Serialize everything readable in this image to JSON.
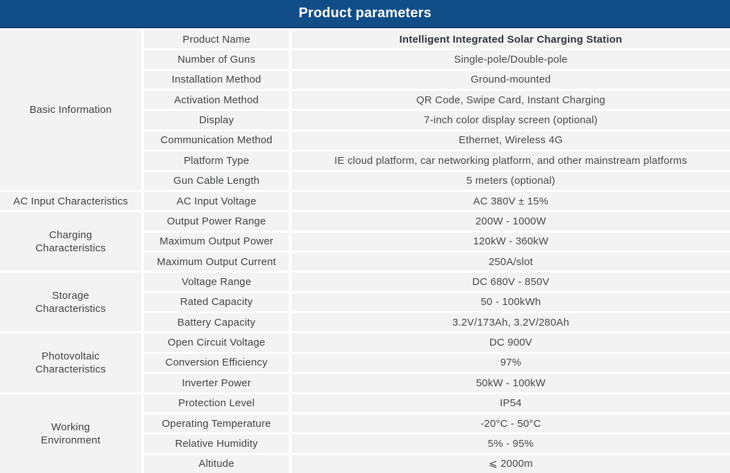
{
  "header": {
    "title": "Product parameters"
  },
  "colors": {
    "header_bg": "#114e88",
    "header_border": "#0d3d6e",
    "cell_bg": "#f4f3f3",
    "header_text": "#ffffff"
  },
  "table": {
    "groups": [
      {
        "category": "Basic Information",
        "rows": [
          {
            "param": "Product Name",
            "value": "Intelligent Integrated Solar Charging Station",
            "bold": true
          },
          {
            "param": "Number of Guns",
            "value": "Single-pole/Double-pole"
          },
          {
            "param": "Installation Method",
            "value": "Ground-mounted"
          },
          {
            "param": "Activation Method",
            "value": "QR Code, Swipe Card, Instant Charging"
          },
          {
            "param": "Display",
            "value": "7-inch color display screen (optional)"
          },
          {
            "param": "Communication Method",
            "value": "Ethernet, Wireless 4G"
          },
          {
            "param": "Platform Type",
            "value": "IE cloud platform, car networking platform, and other mainstream platforms"
          },
          {
            "param": "Gun Cable Length",
            "value": "5 meters (optional)"
          }
        ]
      },
      {
        "category": "AC Input Characteristics",
        "rows": [
          {
            "param": "AC Input Voltage",
            "value": "AC 380V ± 15%"
          }
        ]
      },
      {
        "category": "Charging\nCharacteristics",
        "rows": [
          {
            "param": "Output Power Range",
            "value": "200W - 1000W"
          },
          {
            "param": "Maximum Output Power",
            "value": "120kW - 360kW"
          },
          {
            "param": "Maximum Output Current",
            "value": "250A/slot"
          }
        ]
      },
      {
        "category": "Storage\nCharacteristics",
        "rows": [
          {
            "param": "Voltage Range",
            "value": "DC 680V - 850V"
          },
          {
            "param": "Rated Capacity",
            "value": "50 - 100kWh"
          },
          {
            "param": "Battery Capacity",
            "value": "3.2V/173Ah, 3.2V/280Ah"
          }
        ]
      },
      {
        "category": "Photovoltaic\nCharacteristics",
        "rows": [
          {
            "param": "Open Circuit Voltage",
            "value": "DC 900V"
          },
          {
            "param": "Conversion Efficiency",
            "value": "97%"
          },
          {
            "param": "Inverter Power",
            "value": "50kW - 100kW"
          }
        ]
      },
      {
        "category": "Working\nEnvironment",
        "rows": [
          {
            "param": "Protection Level",
            "value": "IP54"
          },
          {
            "param": "Operating Temperature",
            "value": "-20°C - 50°C"
          },
          {
            "param": "Relative Humidity",
            "value": "5% - 95%"
          },
          {
            "param": "Altitude",
            "value": "⩽ 2000m"
          }
        ]
      }
    ]
  }
}
